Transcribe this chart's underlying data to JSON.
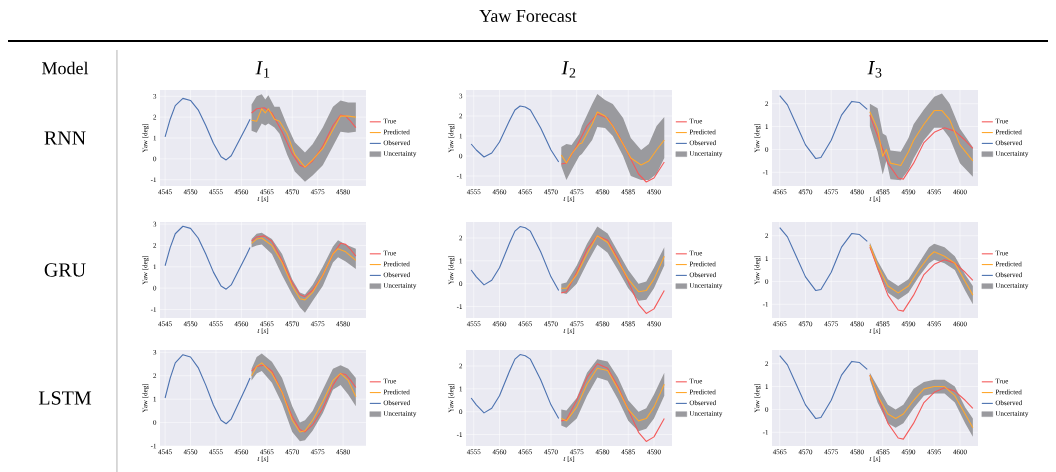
{
  "chart_data": [
    {
      "type": "line",
      "title": "*I*$_{1}$",
      "annotations": [
        "Uncertainty",
        "Yaw Forecast",
        "Model",
        "RNN"
      ],
      "xlabel": "*t* [*s*]",
      "ylabel": "Yaw [deg]",
      "xlim": [
        4544,
        4584.5
      ],
      "ylim": [
        -1.3,
        3.3
      ],
      "xticks": [
        4545,
        4550,
        4555,
        4560,
        4565,
        4570,
        4575,
        4580
      ],
      "yticks": [
        -1,
        0,
        1,
        2,
        3
      ],
      "grid": true,
      "legend": "right",
      "series": [
        {
          "name": "True",
          "color": "#f45b5b",
          "x": [
            4562,
            4563,
            4564.5,
            4566,
            4568,
            4570,
            4571.5,
            4572.5,
            4574,
            4576,
            4578,
            4579.5,
            4580.5,
            4581.5,
            4582.5
          ],
          "values": [
            2.2,
            2.4,
            2.45,
            2.2,
            1.3,
            0.25,
            -0.3,
            -0.4,
            -0.1,
            0.6,
            1.6,
            2.1,
            2.05,
            1.8,
            1.5
          ]
        },
        {
          "name": "Predicted",
          "color": "#ffa82e",
          "x": [
            4562,
            4563,
            4564,
            4564.7,
            4565.3,
            4566.5,
            4567.5,
            4569,
            4570.5,
            4572.5,
            4574,
            4576,
            4578,
            4579.5,
            4581,
            4582.5
          ],
          "values": [
            1.85,
            1.8,
            2.4,
            2.2,
            2.4,
            1.9,
            1.8,
            1.2,
            0.2,
            -0.4,
            -0.05,
            0.5,
            1.4,
            2.05,
            2.05,
            2.0
          ],
          "upper": [
            2.6,
            3.0,
            3.1,
            2.85,
            3.05,
            2.5,
            2.5,
            1.6,
            0.8,
            0.3,
            0.7,
            1.5,
            2.5,
            2.8,
            2.7,
            2.7
          ],
          "lower": [
            1.35,
            1.25,
            1.7,
            1.6,
            1.7,
            1.5,
            1.2,
            0.2,
            -0.6,
            -1.1,
            -0.8,
            -0.3,
            0.6,
            1.3,
            1.25,
            1.3
          ]
        },
        {
          "name": "Observed",
          "color": "#4c72b0",
          "x": [
            4545,
            4546,
            4547,
            4548.5,
            4550,
            4551.5,
            4553,
            4554.5,
            4556,
            4557,
            4558,
            4559.5,
            4561,
            4561.7
          ],
          "values": [
            1.05,
            1.9,
            2.55,
            2.9,
            2.8,
            2.35,
            1.6,
            0.75,
            0.1,
            -0.05,
            0.15,
            0.85,
            1.55,
            1.9
          ]
        }
      ]
    },
    {
      "type": "line",
      "title": "*I*$_{2}$",
      "annotations": [
        "Uncertainty"
      ],
      "xlabel": "*t* [*s*]",
      "ylabel": "Yaw [deg]",
      "xlim": [
        4553.5,
        4593.5
      ],
      "ylim": [
        -1.5,
        3.3
      ],
      "xticks": [
        4555,
        4560,
        4565,
        4570,
        4575,
        4580,
        4585,
        4590
      ],
      "yticks": [
        -1,
        0,
        1,
        2,
        3
      ],
      "grid": true,
      "legend": "right",
      "series": [
        {
          "name": "True",
          "color": "#f45b5b",
          "x": [
            4572,
            4573,
            4575,
            4577,
            4579,
            4581,
            4583,
            4585,
            4587,
            4588.5,
            4590,
            4592
          ],
          "values": [
            -0.4,
            -0.35,
            0.5,
            1.5,
            2.1,
            1.9,
            1.1,
            0.1,
            -0.9,
            -1.3,
            -1.1,
            -0.3
          ]
        },
        {
          "name": "Predicted",
          "color": "#ffa82e",
          "x": [
            4572,
            4573,
            4574,
            4575.5,
            4576,
            4578,
            4579,
            4580.5,
            4582,
            4584,
            4585.5,
            4587.5,
            4589,
            4590.5,
            4592
          ],
          "values": [
            0.05,
            -0.35,
            0.1,
            0.6,
            0.65,
            1.6,
            2.2,
            2.0,
            1.5,
            0.6,
            -0.1,
            -0.45,
            -0.25,
            0.3,
            0.8
          ],
          "upper": [
            0.45,
            0.6,
            0.55,
            1.1,
            1.5,
            2.6,
            3.1,
            2.8,
            2.6,
            1.9,
            0.9,
            0.3,
            0.6,
            1.5,
            1.95
          ],
          "lower": [
            -0.5,
            -1.2,
            -0.7,
            0.0,
            0.1,
            0.8,
            1.45,
            1.4,
            1.0,
            0.0,
            -1.0,
            -1.2,
            -1.2,
            -0.9,
            -0.1
          ]
        },
        {
          "name": "Observed",
          "color": "#4c72b0",
          "x": [
            4554.5,
            4555.5,
            4557,
            4558.5,
            4560,
            4562,
            4563,
            4564,
            4565,
            4566,
            4568,
            4570,
            4571.5
          ],
          "values": [
            0.6,
            0.3,
            -0.05,
            0.15,
            0.7,
            1.8,
            2.3,
            2.5,
            2.45,
            2.3,
            1.4,
            0.3,
            -0.3
          ]
        }
      ]
    },
    {
      "type": "line",
      "title": "*I*$_{3}$",
      "annotations": [
        "Uncertainty"
      ],
      "xlabel": "*t* [*s*]",
      "ylabel": "Yaw [deg]",
      "xlim": [
        4563.5,
        4603.5
      ],
      "ylim": [
        -1.6,
        2.6
      ],
      "xticks": [
        4565,
        4570,
        4575,
        4580,
        4585,
        4590,
        4595,
        4600
      ],
      "yticks": [
        -1,
        0,
        1,
        2
      ],
      "grid": true,
      "legend": "right",
      "series": [
        {
          "name": "True",
          "color": "#f45b5b",
          "x": [
            4582.5,
            4584,
            4586,
            4588,
            4589,
            4591,
            4593,
            4595,
            4597,
            4599,
            4601,
            4602.5
          ],
          "values": [
            1.5,
            0.6,
            -0.6,
            -1.25,
            -1.3,
            -0.6,
            0.3,
            0.75,
            0.95,
            0.8,
            0.4,
            0.05
          ]
        },
        {
          "name": "Predicted",
          "color": "#ffa82e",
          "x": [
            4582.5,
            4584,
            4585,
            4585.7,
            4586.5,
            4588.5,
            4590,
            4591,
            4593,
            4595,
            4596.5,
            4598,
            4600,
            4602.5
          ],
          "values": [
            1.65,
            0.9,
            -0.3,
            0.0,
            -0.6,
            -0.7,
            -0.1,
            0.4,
            1.1,
            1.7,
            1.7,
            1.3,
            0.2,
            -0.5
          ],
          "upper": [
            2.0,
            1.8,
            0.7,
            0.6,
            -0.05,
            -0.1,
            0.5,
            1.1,
            1.75,
            2.3,
            2.45,
            2.0,
            0.9,
            0.1
          ],
          "lower": [
            1.0,
            -0.1,
            -1.1,
            -0.5,
            -1.3,
            -1.35,
            -0.9,
            -0.4,
            0.4,
            0.95,
            0.95,
            0.5,
            -0.6,
            -1.2
          ]
        },
        {
          "name": "Observed",
          "color": "#4c72b0",
          "x": [
            4565,
            4566.5,
            4568,
            4570,
            4572,
            4573,
            4575,
            4577,
            4579,
            4580.5,
            4582
          ],
          "values": [
            2.35,
            1.95,
            1.2,
            0.2,
            -0.4,
            -0.35,
            0.4,
            1.5,
            2.1,
            2.05,
            1.75
          ]
        }
      ]
    },
    {
      "type": "line",
      "annotations": [
        "Uncertainty",
        "GRU"
      ],
      "xlabel": "*t* [*s*]",
      "ylabel": "Yaw [deg]",
      "xlim": [
        4544,
        4584.5
      ],
      "ylim": [
        -1.4,
        3.1
      ],
      "xticks": [
        4545,
        4550,
        4555,
        4560,
        4565,
        4570,
        4575,
        4580
      ],
      "yticks": [
        -1,
        0,
        1,
        2,
        3
      ],
      "grid": true,
      "legend": "right",
      "series": [
        {
          "name": "True",
          "color": "#f45b5b",
          "x": [
            4562,
            4563,
            4564.5,
            4566,
            4568,
            4570,
            4571.5,
            4572.5,
            4574,
            4576,
            4578,
            4579.5,
            4580.5,
            4581.5,
            4582.5
          ],
          "values": [
            2.2,
            2.4,
            2.45,
            2.2,
            1.3,
            0.25,
            -0.3,
            -0.4,
            -0.1,
            0.6,
            1.6,
            2.1,
            2.05,
            1.8,
            1.5
          ]
        },
        {
          "name": "Predicted",
          "color": "#ffa82e",
          "x": [
            4562,
            4563,
            4564,
            4566,
            4568,
            4570,
            4571.5,
            4572.5,
            4574,
            4576,
            4578,
            4579,
            4580.5,
            4582.5
          ],
          "values": [
            2.1,
            2.3,
            2.35,
            2.0,
            1.2,
            0.1,
            -0.5,
            -0.55,
            -0.2,
            0.6,
            1.6,
            1.85,
            1.7,
            1.3
          ],
          "upper": [
            2.3,
            2.55,
            2.6,
            2.3,
            1.6,
            0.4,
            -0.2,
            -0.3,
            0.15,
            1.0,
            1.95,
            2.25,
            2.05,
            1.85
          ],
          "lower": [
            1.9,
            2.0,
            2.05,
            1.6,
            0.6,
            -0.3,
            -0.9,
            -1.15,
            -0.6,
            0.1,
            1.2,
            1.45,
            1.25,
            0.9
          ]
        },
        {
          "name": "Observed",
          "color": "#4c72b0",
          "x": [
            4545,
            4546,
            4547,
            4548.5,
            4550,
            4551.5,
            4553,
            4554.5,
            4556,
            4557,
            4558,
            4559.5,
            4561,
            4561.7
          ],
          "values": [
            1.05,
            1.9,
            2.55,
            2.9,
            2.8,
            2.35,
            1.6,
            0.75,
            0.1,
            -0.05,
            0.15,
            0.85,
            1.55,
            1.9
          ]
        }
      ]
    },
    {
      "type": "line",
      "annotations": [
        "Uncertainty"
      ],
      "xlabel": "*t* [*s*]",
      "ylabel": "Yaw [deg]",
      "xlim": [
        4553.5,
        4593.5
      ],
      "ylim": [
        -1.5,
        2.7
      ],
      "xticks": [
        4555,
        4560,
        4565,
        4570,
        4575,
        4580,
        4585,
        4590
      ],
      "yticks": [
        -1,
        0,
        1,
        2
      ],
      "grid": true,
      "legend": "right",
      "series": [
        {
          "name": "True",
          "color": "#f45b5b",
          "x": [
            4572,
            4573,
            4575,
            4577,
            4579,
            4581,
            4583,
            4585,
            4587,
            4588.5,
            4590,
            4592
          ],
          "values": [
            -0.4,
            -0.35,
            0.5,
            1.5,
            2.1,
            1.9,
            1.1,
            0.1,
            -0.9,
            -1.3,
            -1.1,
            -0.3
          ]
        },
        {
          "name": "Predicted",
          "color": "#ffa82e",
          "x": [
            4572,
            4573,
            4575,
            4577,
            4579,
            4581,
            4583,
            4585,
            4587,
            4588.5,
            4590,
            4592
          ],
          "values": [
            -0.2,
            -0.2,
            0.4,
            1.3,
            2.1,
            1.8,
            1.0,
            0.2,
            -0.35,
            -0.3,
            0.2,
            1.2
          ],
          "upper": [
            0.0,
            0.05,
            0.8,
            1.75,
            2.5,
            2.2,
            1.4,
            0.6,
            0.0,
            0.1,
            0.7,
            1.6
          ],
          "lower": [
            -0.4,
            -0.45,
            0.0,
            0.9,
            1.7,
            1.35,
            0.6,
            -0.2,
            -0.75,
            -0.7,
            -0.2,
            0.8
          ]
        },
        {
          "name": "Observed",
          "color": "#4c72b0",
          "x": [
            4554.5,
            4555.5,
            4557,
            4558.5,
            4560,
            4562,
            4563,
            4564,
            4565,
            4566,
            4568,
            4570,
            4571.5
          ],
          "values": [
            0.6,
            0.3,
            -0.05,
            0.15,
            0.7,
            1.8,
            2.3,
            2.5,
            2.45,
            2.3,
            1.4,
            0.3,
            -0.3
          ]
        }
      ]
    },
    {
      "type": "line",
      "annotations": [
        "Uncertainty"
      ],
      "xlabel": "*t* [*s*]",
      "ylabel": "Yaw [deg]",
      "xlim": [
        4563.5,
        4603.5
      ],
      "ylim": [
        -1.6,
        2.6
      ],
      "xticks": [
        4565,
        4570,
        4575,
        4580,
        4585,
        4590,
        4595,
        4600
      ],
      "yticks": [
        -1,
        0,
        1,
        2
      ],
      "grid": true,
      "legend": "right",
      "series": [
        {
          "name": "True",
          "color": "#f45b5b",
          "x": [
            4582.5,
            4584,
            4586,
            4588,
            4589,
            4591,
            4593,
            4595,
            4597,
            4599,
            4601,
            4602.5
          ],
          "values": [
            1.5,
            0.6,
            -0.6,
            -1.25,
            -1.3,
            -0.6,
            0.3,
            0.75,
            0.95,
            0.8,
            0.4,
            0.05
          ]
        },
        {
          "name": "Predicted",
          "color": "#ffa82e",
          "x": [
            4582.5,
            4584,
            4586,
            4588,
            4590,
            4592,
            4594,
            4595,
            4597,
            4599,
            4601,
            4602.5
          ],
          "values": [
            1.6,
            0.7,
            -0.2,
            -0.5,
            -0.2,
            0.5,
            1.1,
            1.3,
            1.1,
            0.8,
            0.0,
            -0.6
          ],
          "upper": [
            1.7,
            0.9,
            0.1,
            -0.2,
            0.1,
            0.8,
            1.5,
            1.65,
            1.5,
            1.1,
            0.3,
            -0.2
          ],
          "lower": [
            1.5,
            0.5,
            -0.5,
            -0.8,
            -0.5,
            0.2,
            0.8,
            0.95,
            0.8,
            0.5,
            -0.4,
            -1.0
          ]
        },
        {
          "name": "Observed",
          "color": "#4c72b0",
          "x": [
            4565,
            4566.5,
            4568,
            4570,
            4572,
            4573,
            4575,
            4577,
            4579,
            4580.5,
            4582
          ],
          "values": [
            2.35,
            1.95,
            1.2,
            0.2,
            -0.4,
            -0.35,
            0.4,
            1.5,
            2.1,
            2.05,
            1.75
          ]
        }
      ]
    },
    {
      "type": "line",
      "annotations": [
        "Uncertainty",
        "LSTM"
      ],
      "xlabel": "*t* [*s*]",
      "ylabel": "Yaw [deg]",
      "xlim": [
        4544,
        4584.5
      ],
      "ylim": [
        -1.0,
        3.1
      ],
      "xticks": [
        4545,
        4550,
        4555,
        4560,
        4565,
        4570,
        4575,
        4580
      ],
      "yticks": [
        -1,
        0,
        1,
        2,
        3
      ],
      "grid": true,
      "legend": "right",
      "series": [
        {
          "name": "True",
          "color": "#f45b5b",
          "x": [
            4562,
            4563,
            4564.5,
            4566,
            4568,
            4570,
            4571.5,
            4572.5,
            4574,
            4576,
            4578,
            4579.5,
            4580.5,
            4581.5,
            4582.5
          ],
          "values": [
            2.2,
            2.4,
            2.45,
            2.2,
            1.3,
            0.25,
            -0.3,
            -0.4,
            -0.1,
            0.6,
            1.6,
            2.1,
            2.05,
            1.8,
            1.5
          ]
        },
        {
          "name": "Predicted",
          "color": "#ffa82e",
          "x": [
            4562,
            4563,
            4564,
            4566,
            4568,
            4570,
            4571.5,
            4572.5,
            4574,
            4576,
            4578,
            4579.5,
            4581,
            4582.5
          ],
          "values": [
            2.0,
            2.4,
            2.55,
            2.1,
            1.3,
            0.1,
            -0.4,
            -0.35,
            0.1,
            0.9,
            1.8,
            2.1,
            1.8,
            1.1
          ],
          "upper": [
            2.3,
            2.8,
            2.95,
            2.6,
            1.9,
            0.7,
            0.0,
            0.1,
            0.5,
            1.4,
            2.3,
            2.45,
            2.3,
            1.9
          ],
          "lower": [
            1.8,
            2.1,
            2.2,
            1.7,
            0.8,
            -0.4,
            -0.8,
            -0.75,
            -0.35,
            0.4,
            1.4,
            1.6,
            1.2,
            0.7
          ]
        },
        {
          "name": "Observed",
          "color": "#4c72b0",
          "x": [
            4545,
            4546,
            4547,
            4548.5,
            4550,
            4551.5,
            4553,
            4554.5,
            4556,
            4557,
            4558,
            4559.5,
            4561,
            4561.7
          ],
          "values": [
            1.05,
            1.9,
            2.55,
            2.9,
            2.8,
            2.35,
            1.6,
            0.75,
            0.1,
            -0.05,
            0.15,
            0.85,
            1.55,
            1.9
          ]
        }
      ]
    },
    {
      "type": "line",
      "annotations": [
        "Uncertainty"
      ],
      "xlabel": "*t* [*s*]",
      "ylabel": "Yaw [deg]",
      "xlim": [
        4553.5,
        4593.5
      ],
      "ylim": [
        -1.5,
        2.7
      ],
      "xticks": [
        4555,
        4560,
        4565,
        4570,
        4575,
        4580,
        4585,
        4590
      ],
      "yticks": [
        -1,
        0,
        1,
        2
      ],
      "grid": true,
      "legend": "right",
      "series": [
        {
          "name": "True",
          "color": "#f45b5b",
          "x": [
            4572,
            4573,
            4575,
            4577,
            4579,
            4581,
            4583,
            4585,
            4587,
            4588.5,
            4590,
            4592
          ],
          "values": [
            -0.4,
            -0.35,
            0.5,
            1.5,
            2.1,
            1.9,
            1.1,
            0.1,
            -0.9,
            -1.3,
            -1.1,
            -0.3
          ]
        },
        {
          "name": "Predicted",
          "color": "#ffa82e",
          "x": [
            4572,
            4573,
            4575,
            4577,
            4579,
            4581,
            4583,
            4585,
            4587,
            4588.5,
            4590,
            4592
          ],
          "values": [
            -0.3,
            -0.4,
            0.2,
            1.2,
            1.9,
            1.8,
            1.0,
            0.1,
            -0.4,
            -0.3,
            0.2,
            1.2
          ],
          "upper": [
            0.1,
            0.05,
            0.6,
            1.7,
            2.3,
            2.2,
            1.5,
            0.5,
            0.0,
            0.15,
            0.75,
            1.7
          ],
          "lower": [
            -0.6,
            -0.7,
            -0.3,
            0.7,
            1.5,
            1.35,
            0.55,
            -0.4,
            -0.85,
            -0.75,
            -0.3,
            0.7
          ]
        },
        {
          "name": "Observed",
          "color": "#4c72b0",
          "x": [
            4554.5,
            4555.5,
            4557,
            4558.5,
            4560,
            4562,
            4563,
            4564,
            4565,
            4566,
            4568,
            4570,
            4571.5
          ],
          "values": [
            0.6,
            0.3,
            -0.05,
            0.15,
            0.7,
            1.8,
            2.3,
            2.5,
            2.45,
            2.3,
            1.4,
            0.3,
            -0.3
          ]
        }
      ]
    },
    {
      "type": "line",
      "annotations": [
        "Uncertainty"
      ],
      "xlabel": "*t* [*s*]",
      "ylabel": "Yaw [deg]",
      "xlim": [
        4563.5,
        4603.5
      ],
      "ylim": [
        -1.6,
        2.6
      ],
      "xticks": [
        4565,
        4570,
        4575,
        4580,
        4585,
        4590,
        4595,
        4600
      ],
      "yticks": [
        -1,
        0,
        1,
        2
      ],
      "grid": true,
      "legend": "right",
      "series": [
        {
          "name": "True",
          "color": "#f45b5b",
          "x": [
            4582.5,
            4584,
            4586,
            4588,
            4589,
            4591,
            4593,
            4595,
            4597,
            4599,
            4601,
            4602.5
          ],
          "values": [
            1.5,
            0.6,
            -0.6,
            -1.25,
            -1.3,
            -0.6,
            0.3,
            0.75,
            0.95,
            0.8,
            0.4,
            0.05
          ]
        },
        {
          "name": "Predicted",
          "color": "#ffa82e",
          "x": [
            4582.5,
            4584,
            4586,
            4587.5,
            4589,
            4591,
            4593,
            4595,
            4597,
            4599,
            4601,
            4602.5
          ],
          "values": [
            1.5,
            0.6,
            -0.2,
            -0.4,
            -0.2,
            0.4,
            0.9,
            1.0,
            1.0,
            0.6,
            -0.2,
            -0.8
          ],
          "upper": [
            1.6,
            1.0,
            0.2,
            0.0,
            0.2,
            0.9,
            1.2,
            1.3,
            1.3,
            1.0,
            0.1,
            -0.4
          ],
          "lower": [
            1.3,
            0.3,
            -0.6,
            -0.8,
            -0.6,
            0.05,
            0.6,
            0.7,
            0.7,
            0.3,
            -0.6,
            -1.2
          ]
        },
        {
          "name": "Observed",
          "color": "#4c72b0",
          "x": [
            4565,
            4566.5,
            4568,
            4570,
            4572,
            4573,
            4575,
            4577,
            4579,
            4580.5,
            4582
          ],
          "values": [
            2.35,
            1.95,
            1.2,
            0.2,
            -0.4,
            -0.35,
            0.4,
            1.5,
            2.1,
            2.05,
            1.75
          ]
        }
      ]
    }
  ]
}
